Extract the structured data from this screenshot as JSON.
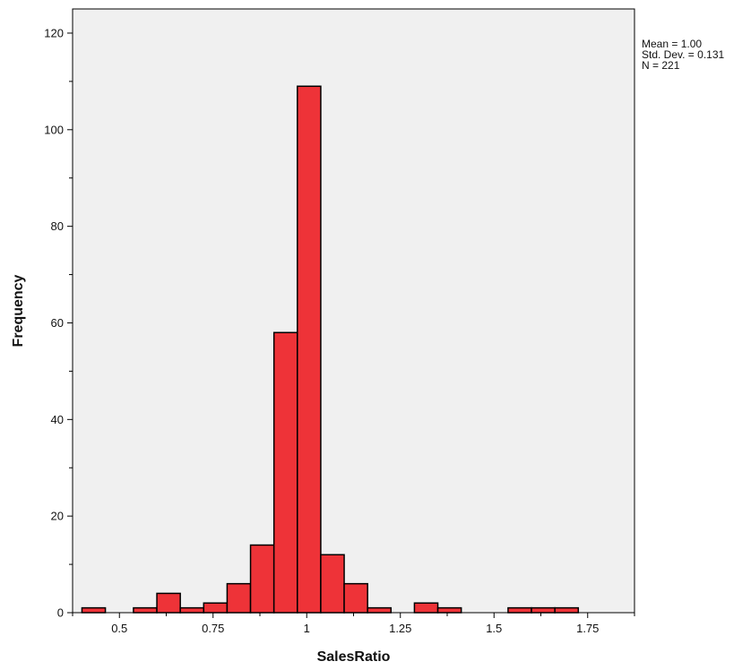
{
  "chart_data": {
    "type": "bar",
    "subtype": "histogram",
    "xlabel": "SalesRatio",
    "ylabel": "Frequency",
    "xlim": [
      0.375,
      1.875
    ],
    "ylim": [
      0,
      125
    ],
    "x_ticks": [
      "0.5",
      "0.75",
      "1",
      "1.25",
      "1.5",
      "1.75"
    ],
    "x_tick_values": [
      0.5,
      0.75,
      1.0,
      1.25,
      1.5,
      1.75
    ],
    "y_ticks": [
      "0",
      "20",
      "40",
      "60",
      "80",
      "100",
      "120"
    ],
    "y_tick_values": [
      0,
      20,
      40,
      60,
      80,
      100,
      120
    ],
    "y_minor_step": 10,
    "bin_width": 0.0625,
    "bins": [
      {
        "x0": 0.4,
        "x1": 0.4625,
        "value": 1
      },
      {
        "x0": 0.5375,
        "x1": 0.6,
        "value": 1
      },
      {
        "x0": 0.6,
        "x1": 0.6625,
        "value": 4
      },
      {
        "x0": 0.6625,
        "x1": 0.725,
        "value": 1
      },
      {
        "x0": 0.725,
        "x1": 0.7875,
        "value": 2
      },
      {
        "x0": 0.7875,
        "x1": 0.85,
        "value": 6
      },
      {
        "x0": 0.85,
        "x1": 0.9125,
        "value": 14
      },
      {
        "x0": 0.9125,
        "x1": 0.975,
        "value": 58
      },
      {
        "x0": 0.975,
        "x1": 1.0375,
        "value": 109
      },
      {
        "x0": 1.0375,
        "x1": 1.1,
        "value": 12
      },
      {
        "x0": 1.1,
        "x1": 1.1625,
        "value": 6
      },
      {
        "x0": 1.1625,
        "x1": 1.225,
        "value": 1
      },
      {
        "x0": 1.2875,
        "x1": 1.35,
        "value": 2
      },
      {
        "x0": 1.35,
        "x1": 1.4125,
        "value": 1
      },
      {
        "x0": 1.5375,
        "x1": 1.6,
        "value": 1
      },
      {
        "x0": 1.6,
        "x1": 1.6625,
        "value": 1
      },
      {
        "x0": 1.6625,
        "x1": 1.725,
        "value": 1
      }
    ],
    "stats": {
      "mean": "Mean = 1.00",
      "std": "Std. Dev. = 0.131",
      "n": "N = 221"
    },
    "colors": {
      "bar_fill": "#ee3338",
      "bar_stroke": "#000000",
      "plot_background": "#f0f0f0",
      "page_background": "#ffffff"
    },
    "grid": false,
    "legend": "none"
  }
}
